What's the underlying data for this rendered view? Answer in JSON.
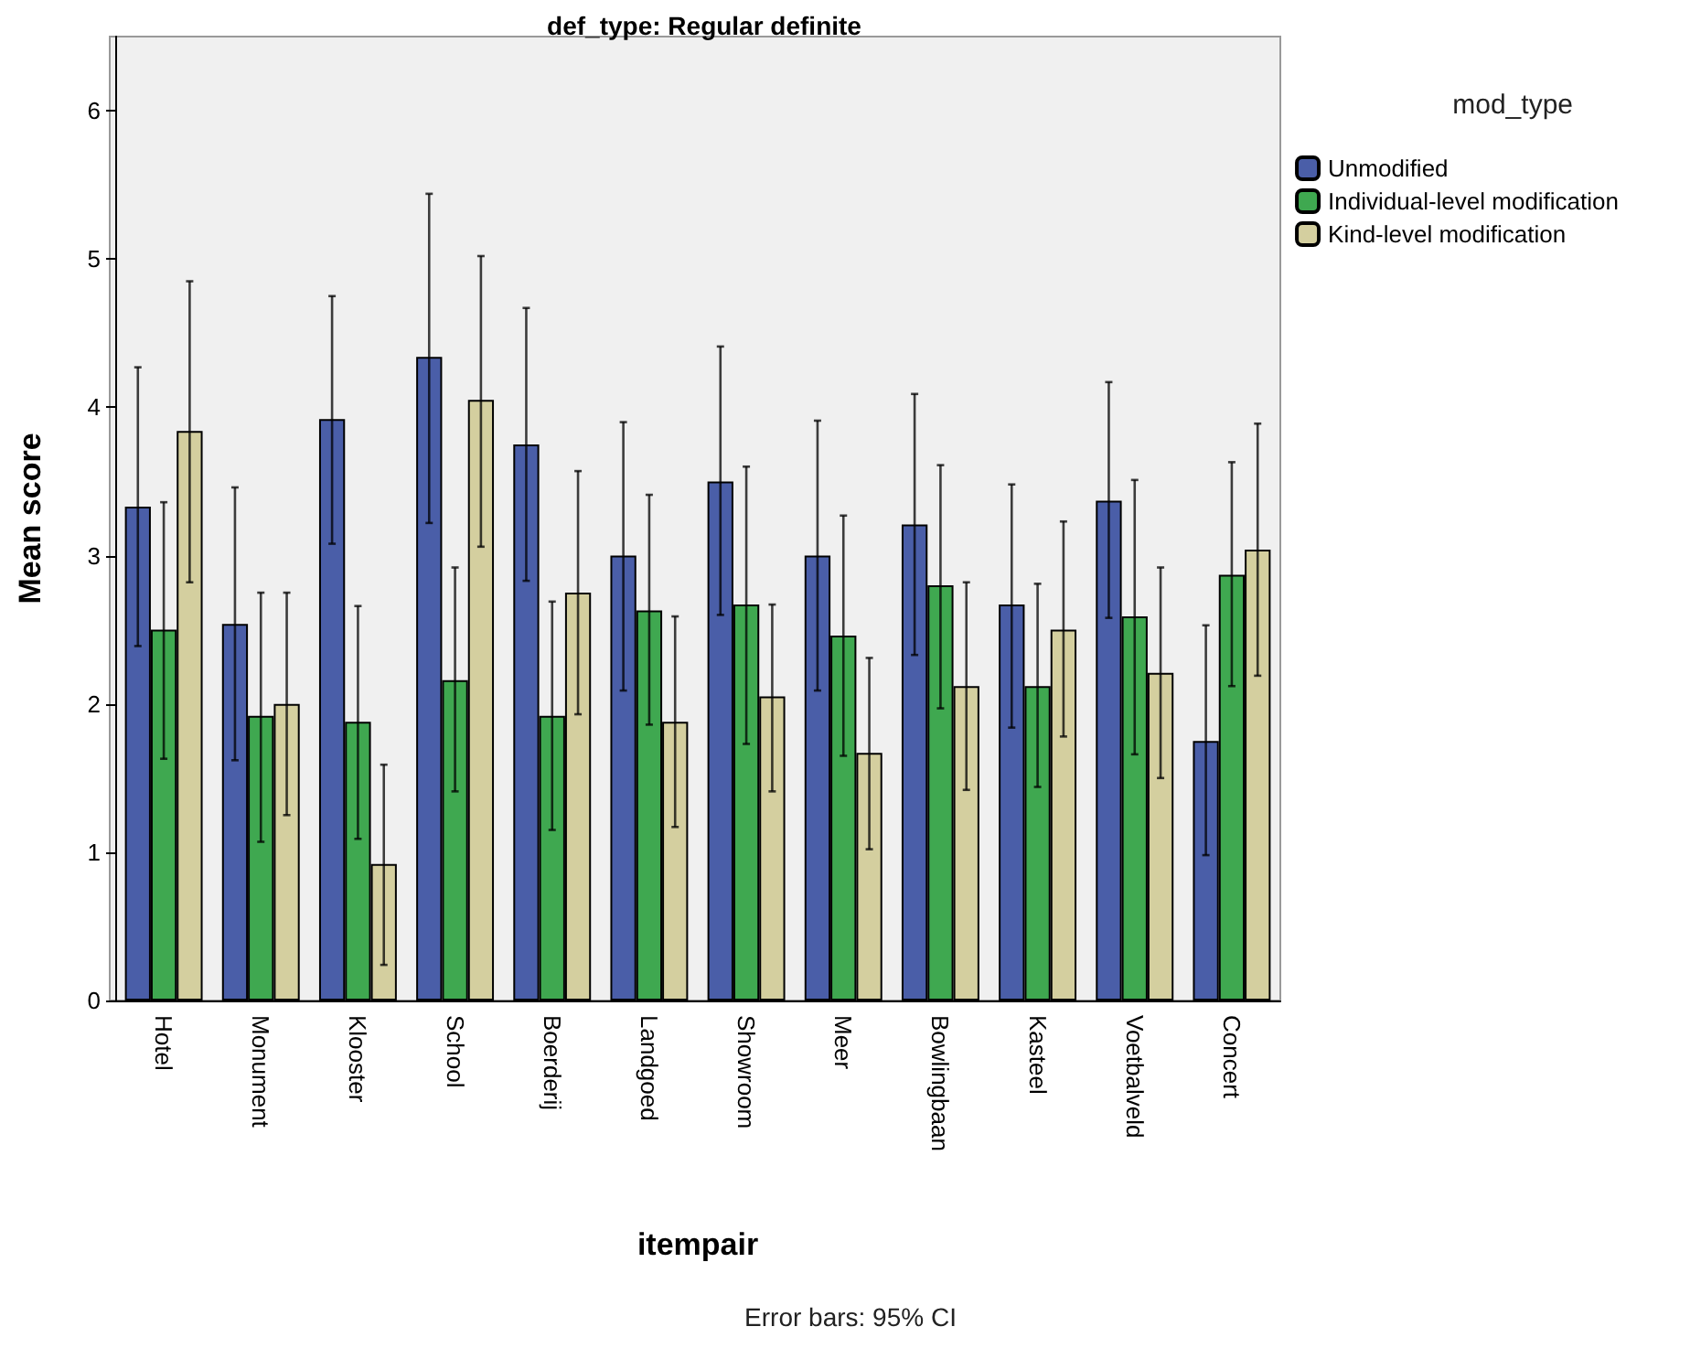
{
  "chart_data": {
    "type": "bar",
    "title": "def_type: Regular definite",
    "xlabel": "itempair",
    "ylabel": "Mean score",
    "legend_title": "mod_type",
    "annotations": [
      "Error bars: 95% CI"
    ],
    "categories": [
      "Hotel",
      "Monument",
      "Klooster",
      "School",
      "Boerderij",
      "Landgoed",
      "Showroom",
      "Meer",
      "Bowlingbaan",
      "Kasteel",
      "Voetbalveld",
      "Concert"
    ],
    "series": [
      {
        "name": "Unmodified",
        "color": "#4a5ea8",
        "values": [
          3.33,
          2.54,
          3.92,
          4.34,
          3.75,
          3.0,
          3.5,
          3.0,
          3.21,
          2.67,
          3.37,
          1.75
        ],
        "errors": [
          [
            2.39,
            4.27
          ],
          [
            1.62,
            3.46
          ],
          [
            3.08,
            4.75
          ],
          [
            3.22,
            5.44
          ],
          [
            2.83,
            4.67
          ],
          [
            2.09,
            3.9
          ],
          [
            2.6,
            4.41
          ],
          [
            2.09,
            3.91
          ],
          [
            2.33,
            4.09
          ],
          [
            1.84,
            3.48
          ],
          [
            2.58,
            4.17
          ],
          [
            0.98,
            2.53
          ]
        ]
      },
      {
        "name": "Individual-level modification",
        "color": "#3fa850",
        "values": [
          2.5,
          1.92,
          1.88,
          2.16,
          1.92,
          2.63,
          2.67,
          2.46,
          2.8,
          2.12,
          2.59,
          2.87
        ],
        "errors": [
          [
            1.63,
            3.36
          ],
          [
            1.07,
            2.75
          ],
          [
            1.09,
            2.66
          ],
          [
            1.41,
            2.92
          ],
          [
            1.15,
            2.69
          ],
          [
            1.86,
            3.41
          ],
          [
            1.73,
            3.6
          ],
          [
            1.65,
            3.27
          ],
          [
            1.97,
            3.61
          ],
          [
            1.44,
            2.81
          ],
          [
            1.66,
            3.51
          ],
          [
            2.12,
            3.63
          ]
        ]
      },
      {
        "name": "Kind-level modification",
        "color": "#d4cf9f",
        "values": [
          3.84,
          2.0,
          0.92,
          4.05,
          2.75,
          1.88,
          2.05,
          1.67,
          2.12,
          2.5,
          2.21,
          3.04
        ],
        "errors": [
          [
            2.82,
            4.85
          ],
          [
            1.25,
            2.75
          ],
          [
            0.24,
            1.59
          ],
          [
            3.06,
            5.02
          ],
          [
            1.93,
            3.57
          ],
          [
            1.17,
            2.59
          ],
          [
            1.41,
            2.67
          ],
          [
            1.02,
            2.31
          ],
          [
            1.42,
            2.82
          ],
          [
            1.78,
            3.23
          ],
          [
            1.5,
            2.92
          ],
          [
            2.19,
            3.89
          ]
        ]
      }
    ],
    "ylim": [
      0,
      6.5
    ],
    "yticks": [
      0,
      1,
      2,
      3,
      4,
      5,
      6
    ],
    "grid": false,
    "legend": "top right"
  }
}
